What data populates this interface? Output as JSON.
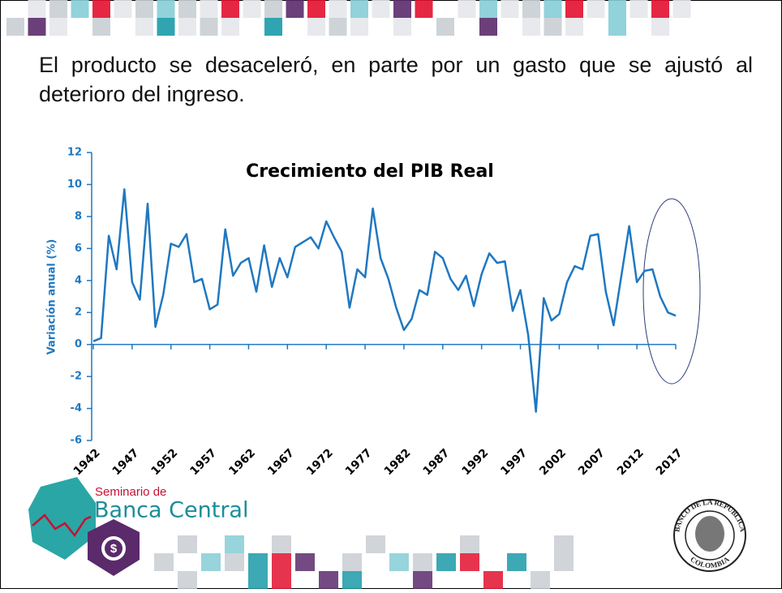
{
  "slide_text": "El producto se desaceleró, en parte por un gasto que se ajustó al deterioro del ingreso.",
  "chart_data": {
    "type": "line",
    "title": "Crecimiento del PIB Real",
    "y_label": "Variación anual (%)",
    "color": "#1f78c1",
    "x": [
      1942,
      1943,
      1944,
      1945,
      1946,
      1947,
      1948,
      1949,
      1950,
      1951,
      1952,
      1953,
      1954,
      1955,
      1956,
      1957,
      1958,
      1959,
      1960,
      1961,
      1962,
      1963,
      1964,
      1965,
      1966,
      1967,
      1968,
      1969,
      1970,
      1971,
      1972,
      1973,
      1974,
      1975,
      1976,
      1977,
      1978,
      1979,
      1980,
      1981,
      1982,
      1983,
      1984,
      1985,
      1986,
      1987,
      1988,
      1989,
      1990,
      1991,
      1992,
      1993,
      1994,
      1995,
      1996,
      1997,
      1998,
      1999,
      2000,
      2001,
      2002,
      2003,
      2004,
      2005,
      2006,
      2007,
      2008,
      2009,
      2010,
      2011,
      2012,
      2013,
      2014,
      2015,
      2016,
      2017
    ],
    "values": [
      0.2,
      0.4,
      6.8,
      4.7,
      9.7,
      3.9,
      2.8,
      8.8,
      1.1,
      3.1,
      6.3,
      6.1,
      6.9,
      3.9,
      4.1,
      2.2,
      2.5,
      7.2,
      4.3,
      5.1,
      5.4,
      3.3,
      6.2,
      3.6,
      5.4,
      4.2,
      6.1,
      6.4,
      6.7,
      6.0,
      7.7,
      6.7,
      5.8,
      2.3,
      4.7,
      4.2,
      8.5,
      5.4,
      4.1,
      2.3,
      0.9,
      1.6,
      3.4,
      3.1,
      5.8,
      5.4,
      4.1,
      3.4,
      4.3,
      2.4,
      4.4,
      5.7,
      5.1,
      5.2,
      2.1,
      3.4,
      0.6,
      -4.2,
      2.9,
      1.5,
      1.9,
      3.9,
      4.9,
      4.7,
      6.8,
      6.9,
      3.3,
      1.2,
      4.3,
      7.4,
      3.9,
      4.6,
      4.7,
      3.0,
      2.0,
      1.8
    ],
    "xlim": [
      1942,
      2017
    ],
    "xticks": [
      1942,
      1947,
      1952,
      1957,
      1962,
      1967,
      1972,
      1977,
      1982,
      1987,
      1992,
      1997,
      2002,
      2007,
      2012,
      2017
    ],
    "ylim": [
      -6,
      12
    ],
    "yticks": [
      -6,
      -4,
      -2,
      0,
      2,
      4,
      6,
      8,
      10,
      12
    ]
  },
  "logo": {
    "line1": "Seminario de",
    "line2": "Banca Central"
  },
  "seal": {
    "top": "BANCO DE LA REPUBLICA",
    "bottom": "COLOMBIA"
  }
}
